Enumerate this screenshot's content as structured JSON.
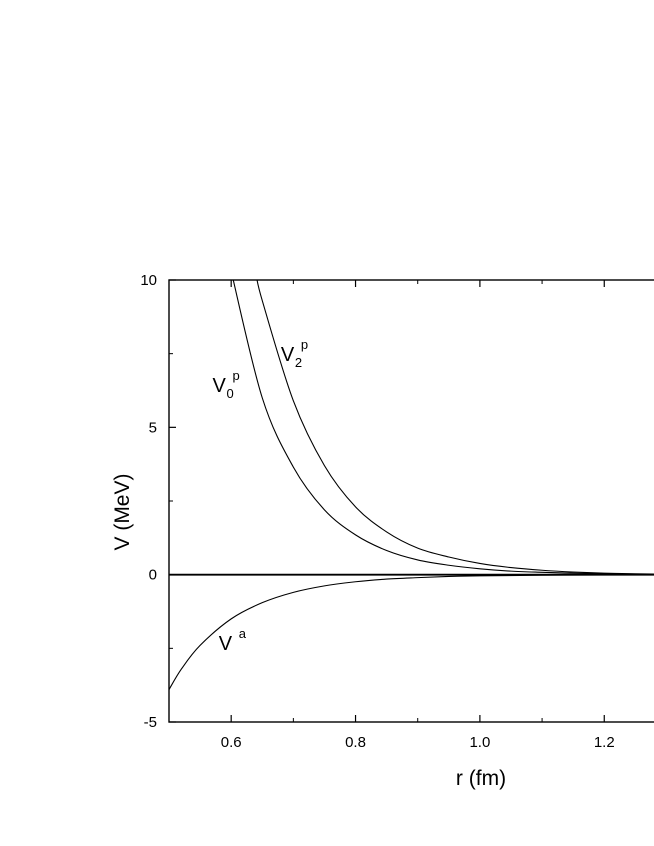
{
  "chart_data": {
    "type": "line",
    "title": "",
    "xlabel": "r (fm)",
    "ylabel": "V (MeV)",
    "xlim": [
      0.5,
      1.28
    ],
    "ylim": [
      -5,
      10
    ],
    "x_ticks": [
      0.6,
      0.8,
      1.0,
      1.2
    ],
    "x_tick_labels": [
      "0.6",
      "0.8",
      "1.0",
      "1.2"
    ],
    "y_ticks": [
      -5,
      0,
      5,
      10
    ],
    "y_tick_labels": [
      "-5",
      "0",
      "5",
      "10"
    ],
    "grid": false,
    "legend": "none",
    "zero_line": 0,
    "series": [
      {
        "label_main": "V",
        "label_sub": "0",
        "label_sup": "p",
        "x": [
          0.6,
          0.65,
          0.7,
          0.75,
          0.8,
          0.85,
          0.9,
          0.95,
          1.0,
          1.05,
          1.1,
          1.15,
          1.2,
          1.25,
          1.28
        ],
        "y": [
          10.3,
          6.0,
          3.65,
          2.2,
          1.35,
          0.82,
          0.5,
          0.32,
          0.2,
          0.12,
          0.08,
          0.05,
          0.03,
          0.02,
          0.015
        ]
      },
      {
        "label_main": "V",
        "label_sub": "2",
        "label_sup": "p",
        "x": [
          0.64,
          0.65,
          0.7,
          0.75,
          0.8,
          0.85,
          0.9,
          0.95,
          1.0,
          1.05,
          1.1,
          1.15,
          1.2,
          1.25,
          1.28
        ],
        "y": [
          10.2,
          9.3,
          5.9,
          3.7,
          2.3,
          1.45,
          0.9,
          0.6,
          0.38,
          0.24,
          0.15,
          0.09,
          0.05,
          0.03,
          0.02
        ]
      },
      {
        "label_main": "V",
        "label_sub": "",
        "label_sup": "a",
        "x": [
          0.5,
          0.52,
          0.55,
          0.6,
          0.65,
          0.7,
          0.75,
          0.8,
          0.85,
          0.9,
          0.95,
          1.0,
          1.1,
          1.2,
          1.28
        ],
        "y": [
          -3.9,
          -3.2,
          -2.4,
          -1.5,
          -0.95,
          -0.6,
          -0.38,
          -0.24,
          -0.15,
          -0.1,
          -0.06,
          -0.04,
          -0.02,
          -0.01,
          -0.005
        ]
      }
    ]
  }
}
